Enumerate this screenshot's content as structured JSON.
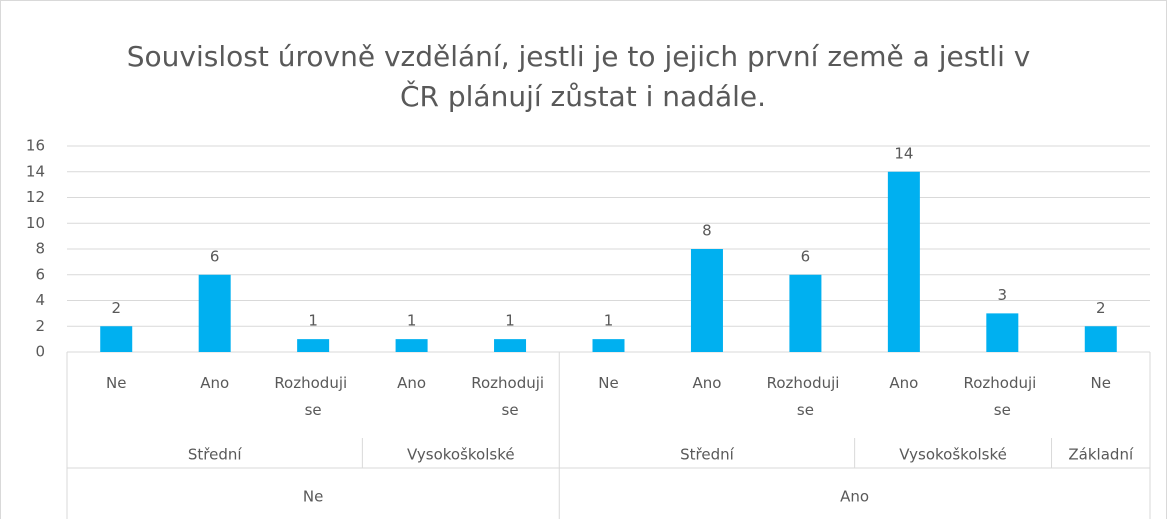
{
  "chart_data": {
    "type": "bar",
    "title": "Souvislost úrovně vzdělání, jestli je to jejich první země a jestli v ČR plánují zůstat i nadále.",
    "color": "#00b0f0",
    "ylim": [
      0,
      16
    ],
    "yticks": [
      0,
      2,
      4,
      6,
      8,
      10,
      12,
      14,
      16
    ],
    "grid": true,
    "groups": [
      {
        "label": "Ne",
        "groups": [
          {
            "label": "Střední",
            "categories": [
              "Ne",
              "Ano",
              "Rozhoduji se"
            ],
            "values": [
              2,
              6,
              1
            ]
          },
          {
            "label": "Vysokoškolské",
            "categories": [
              "Ano",
              "Rozhoduji se"
            ],
            "values": [
              1,
              1
            ]
          }
        ]
      },
      {
        "label": "Ano",
        "groups": [
          {
            "label": "Střední",
            "categories": [
              "Ne",
              "Ano",
              "Rozhoduji se"
            ],
            "values": [
              1,
              8,
              6
            ]
          },
          {
            "label": "Vysokoškolské",
            "categories": [
              "Ano",
              "Rozhoduji se"
            ],
            "values": [
              14,
              3
            ]
          },
          {
            "label": "Základní",
            "categories": [
              "Ne"
            ],
            "values": [
              2
            ]
          }
        ]
      }
    ]
  }
}
